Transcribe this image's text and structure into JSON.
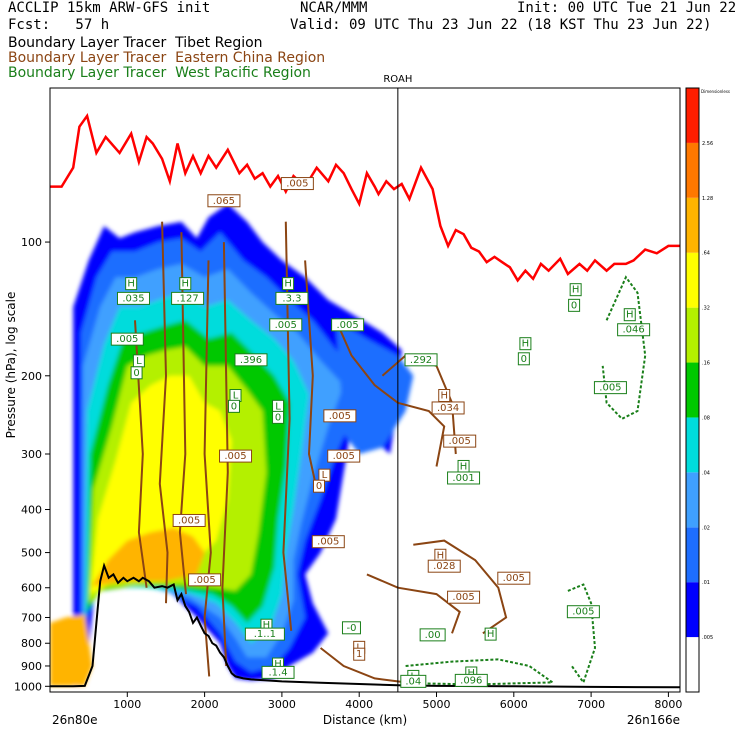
{
  "header": {
    "model_line": "ACCLIP 15km ARW-GFS init",
    "org": "NCAR/MMM",
    "init": "Init: 00 UTC Tue 21 Jun 22",
    "fcst": "Fcst:   57 h",
    "valid": "Valid: 09 UTC Thu 23 Jun 22 (18 KST Thu 23 Jun 22)",
    "tracer_lines": [
      {
        "text": "Boundary Layer Tracer  Tibet Region",
        "color": "#000000"
      },
      {
        "text": "Boundary Layer Tracer  Eastern China Region",
        "color": "#8B4513"
      },
      {
        "text": "Boundary Layer Tracer  West Pacific Region",
        "color": "#1a7f1a"
      }
    ]
  },
  "chart_data": {
    "type": "heatmap",
    "xlabel": "Distance (km)",
    "ylabel": "Pressure (hPa), log scale",
    "x_ticks": [
      "1000",
      "2000",
      "3000",
      "4000",
      "5000",
      "6000",
      "7000",
      "8000"
    ],
    "xlim": [
      0,
      8150
    ],
    "y_ticks": [
      "100",
      "200",
      "300",
      "400",
      "500",
      "600",
      "700",
      "800",
      "900",
      "1000"
    ],
    "ylim": [
      1030,
      45
    ],
    "x_start_label": "26n80e",
    "x_end_label": "26n166e",
    "vertical_marker": {
      "label": "ROAH",
      "x": 4500
    },
    "colorbar": {
      "title": "Dimensionless",
      "levels": [
        ".005",
        ".01",
        ".02",
        ".04",
        ".08",
        ".16",
        ".32",
        ".64",
        "1.28",
        "2.56"
      ],
      "colors": [
        "#ffffff",
        "#0000ff",
        "#1e6eff",
        "#3fa0ff",
        "#00dcdc",
        "#00c800",
        "#b4f000",
        "#ffff00",
        "#ffb400",
        "#ff7800",
        "#ff1e00"
      ]
    },
    "tropopause_line": {
      "color": "#ff0000",
      "points": [
        [
          0,
          75
        ],
        [
          150,
          75
        ],
        [
          300,
          68
        ],
        [
          380,
          55
        ],
        [
          480,
          52
        ],
        [
          600,
          63
        ],
        [
          720,
          58
        ],
        [
          900,
          63
        ],
        [
          1050,
          57
        ],
        [
          1150,
          66
        ],
        [
          1250,
          58
        ],
        [
          1330,
          60
        ],
        [
          1450,
          65
        ],
        [
          1550,
          73
        ],
        [
          1650,
          60
        ],
        [
          1750,
          70
        ],
        [
          1850,
          64
        ],
        [
          1950,
          70
        ],
        [
          2050,
          64
        ],
        [
          2150,
          68
        ],
        [
          2300,
          62
        ],
        [
          2450,
          70
        ],
        [
          2550,
          67
        ],
        [
          2650,
          72
        ],
        [
          2750,
          70
        ],
        [
          2850,
          75
        ],
        [
          2950,
          71
        ],
        [
          3050,
          77
        ],
        [
          3150,
          71
        ],
        [
          3300,
          75
        ],
        [
          3450,
          68
        ],
        [
          3600,
          73
        ],
        [
          3700,
          67
        ],
        [
          3800,
          70
        ],
        [
          3900,
          76
        ],
        [
          4000,
          82
        ],
        [
          4100,
          70
        ],
        [
          4200,
          75
        ],
        [
          4250,
          78
        ],
        [
          4350,
          73
        ],
        [
          4450,
          76
        ],
        [
          4550,
          74
        ],
        [
          4650,
          80
        ],
        [
          4800,
          68
        ],
        [
          4950,
          76
        ],
        [
          5050,
          92
        ],
        [
          5150,
          102
        ],
        [
          5250,
          94
        ],
        [
          5350,
          96
        ],
        [
          5450,
          103
        ],
        [
          5550,
          105
        ],
        [
          5650,
          111
        ],
        [
          5750,
          108
        ],
        [
          5850,
          111
        ],
        [
          5950,
          114
        ],
        [
          6050,
          122
        ],
        [
          6150,
          116
        ],
        [
          6250,
          121
        ],
        [
          6350,
          112
        ],
        [
          6450,
          116
        ],
        [
          6600,
          109
        ],
        [
          6700,
          118
        ],
        [
          6850,
          112
        ],
        [
          6950,
          116
        ],
        [
          7050,
          110
        ],
        [
          7200,
          116
        ],
        [
          7300,
          112
        ],
        [
          7450,
          112
        ],
        [
          7550,
          110
        ],
        [
          7700,
          104
        ],
        [
          7850,
          106
        ],
        [
          8000,
          102
        ],
        [
          8150,
          102
        ]
      ]
    },
    "terrain_line": {
      "color": "#000000",
      "points": [
        [
          0,
          1000
        ],
        [
          300,
          1000
        ],
        [
          450,
          998
        ],
        [
          550,
          900
        ],
        [
          600,
          720
        ],
        [
          650,
          580
        ],
        [
          700,
          535
        ],
        [
          760,
          570
        ],
        [
          820,
          560
        ],
        [
          880,
          585
        ],
        [
          950,
          570
        ],
        [
          1000,
          580
        ],
        [
          1080,
          570
        ],
        [
          1150,
          580
        ],
        [
          1200,
          570
        ],
        [
          1280,
          580
        ],
        [
          1350,
          600
        ],
        [
          1450,
          595
        ],
        [
          1520,
          600
        ],
        [
          1600,
          590
        ],
        [
          1650,
          640
        ],
        [
          1700,
          620
        ],
        [
          1750,
          660
        ],
        [
          1800,
          680
        ],
        [
          1850,
          720
        ],
        [
          1900,
          700
        ],
        [
          1950,
          730
        ],
        [
          2000,
          760
        ],
        [
          2050,
          770
        ],
        [
          2100,
          800
        ],
        [
          2150,
          810
        ],
        [
          2200,
          840
        ],
        [
          2250,
          860
        ],
        [
          2300,
          900
        ],
        [
          2350,
          935
        ],
        [
          2400,
          950
        ],
        [
          2500,
          960
        ],
        [
          2600,
          965
        ],
        [
          2800,
          970
        ],
        [
          3000,
          975
        ],
        [
          3500,
          982
        ],
        [
          4000,
          988
        ],
        [
          4500,
          995
        ],
        [
          5000,
          998
        ],
        [
          6000,
          1000
        ],
        [
          7000,
          1003
        ],
        [
          8150,
          1005
        ]
      ]
    },
    "annotations": [
      {
        "text": "H",
        "x": 1050,
        "p": 126,
        "color": "#1a7f1a"
      },
      {
        "text": ".035",
        "x": 1080,
        "p": 136,
        "color": "#1a7f1a"
      },
      {
        "text": "H",
        "x": 1750,
        "p": 126,
        "color": "#1a7f1a"
      },
      {
        "text": ".127",
        "x": 1780,
        "p": 136,
        "color": "#1a7f1a"
      },
      {
        "text": ".005",
        "x": 1000,
        "p": 168,
        "color": "#1a7f1a"
      },
      {
        "text": "L",
        "x": 1150,
        "p": 188,
        "color": "#1a7f1a"
      },
      {
        "text": "0",
        "x": 1120,
        "p": 200,
        "color": "#1a7f1a"
      },
      {
        "text": ".065",
        "x": 2250,
        "p": 82,
        "color": "#8B4513"
      },
      {
        "text": ".005",
        "x": 3200,
        "p": 75,
        "color": "#8B4513"
      },
      {
        "text": "H",
        "x": 3080,
        "p": 126,
        "color": "#1a7f1a"
      },
      {
        "text": ".3.3",
        "x": 3130,
        "p": 136,
        "color": "#1a7f1a"
      },
      {
        "text": ".005",
        "x": 3050,
        "p": 156,
        "color": "#1a7f1a"
      },
      {
        "text": ".005",
        "x": 3850,
        "p": 156,
        "color": "#1a7f1a"
      },
      {
        "text": ".396",
        "x": 2600,
        "p": 187,
        "color": "#1a7f1a"
      },
      {
        "text": ".292",
        "x": 4800,
        "p": 187,
        "color": "#1a7f1a"
      },
      {
        "text": "L",
        "x": 2400,
        "p": 225,
        "color": "#1a7f1a"
      },
      {
        "text": "0",
        "x": 2380,
        "p": 238,
        "color": "#1a7f1a"
      },
      {
        "text": "L",
        "x": 2950,
        "p": 238,
        "color": "#1a7f1a"
      },
      {
        "text": "0",
        "x": 2950,
        "p": 252,
        "color": "#1a7f1a"
      },
      {
        "text": ".005",
        "x": 3750,
        "p": 250,
        "color": "#8B4513"
      },
      {
        "text": ".005",
        "x": 2400,
        "p": 308,
        "color": "#8B4513"
      },
      {
        "text": ".005",
        "x": 3800,
        "p": 308,
        "color": "#8B4513"
      },
      {
        "text": "L",
        "x": 3550,
        "p": 340,
        "color": "#8B4513"
      },
      {
        "text": "0",
        "x": 3480,
        "p": 360,
        "color": "#8B4513"
      },
      {
        "text": "H",
        "x": 5100,
        "p": 225,
        "color": "#8B4513"
      },
      {
        "text": ".034",
        "x": 5150,
        "p": 240,
        "color": "#8B4513"
      },
      {
        "text": ".005",
        "x": 5300,
        "p": 285,
        "color": "#8B4513"
      },
      {
        "text": "H",
        "x": 5350,
        "p": 325,
        "color": "#1a7f1a"
      },
      {
        "text": ".001",
        "x": 5350,
        "p": 345,
        "color": "#1a7f1a"
      },
      {
        "text": "H",
        "x": 6800,
        "p": 130,
        "color": "#1a7f1a"
      },
      {
        "text": "0",
        "x": 6780,
        "p": 141,
        "color": "#1a7f1a"
      },
      {
        "text": "H",
        "x": 6150,
        "p": 172,
        "color": "#1a7f1a"
      },
      {
        "text": "0",
        "x": 6130,
        "p": 186,
        "color": "#1a7f1a"
      },
      {
        "text": "H",
        "x": 7500,
        "p": 148,
        "color": "#1a7f1a"
      },
      {
        "text": ".046",
        "x": 7550,
        "p": 160,
        "color": "#1a7f1a"
      },
      {
        "text": ".005",
        "x": 7250,
        "p": 216,
        "color": "#1a7f1a"
      },
      {
        "text": ".005",
        "x": 1800,
        "p": 430,
        "color": "#8B4513"
      },
      {
        "text": ".005",
        "x": 3600,
        "p": 480,
        "color": "#8B4513"
      },
      {
        "text": "H",
        "x": 5050,
        "p": 515,
        "color": "#8B4513"
      },
      {
        "text": ".028",
        "x": 5100,
        "p": 545,
        "color": "#8B4513"
      },
      {
        "text": ".005",
        "x": 6000,
        "p": 580,
        "color": "#8B4513"
      },
      {
        "text": ".005",
        "x": 5350,
        "p": 640,
        "color": "#8B4513"
      },
      {
        "text": ".005",
        "x": 6900,
        "p": 690,
        "color": "#1a7f1a"
      },
      {
        "text": ".005",
        "x": 2000,
        "p": 585,
        "color": "#8B4513"
      },
      {
        "text": "H",
        "x": 2800,
        "p": 740,
        "color": "#1a7f1a"
      },
      {
        "text": ".1..1",
        "x": 2780,
        "p": 775,
        "color": "#1a7f1a"
      },
      {
        "text": "-0",
        "x": 3900,
        "p": 750,
        "color": "#1a7f1a"
      },
      {
        "text": "L",
        "x": 4000,
        "p": 830,
        "color": "#8B4513"
      },
      {
        "text": "1",
        "x": 4000,
        "p": 860,
        "color": "#8B4513"
      },
      {
        "text": ".00",
        "x": 4950,
        "p": 778,
        "color": "#1a7f1a"
      },
      {
        "text": "H",
        "x": 5700,
        "p": 775,
        "color": "#1a7f1a"
      },
      {
        "text": "H",
        "x": 2950,
        "p": 905,
        "color": "#1a7f1a"
      },
      {
        "text": ".1.4",
        "x": 2950,
        "p": 945,
        "color": "#1a7f1a"
      },
      {
        "text": "H",
        "x": 5450,
        "p": 948,
        "color": "#1a7f1a"
      },
      {
        "text": ".096",
        "x": 5450,
        "p": 985,
        "color": "#1a7f1a"
      },
      {
        "text": "L",
        "x": 4700,
        "p": 965,
        "color": "#1a7f1a"
      },
      {
        "text": ".04",
        "x": 4700,
        "p": 990,
        "color": "#1a7f1a"
      }
    ]
  }
}
